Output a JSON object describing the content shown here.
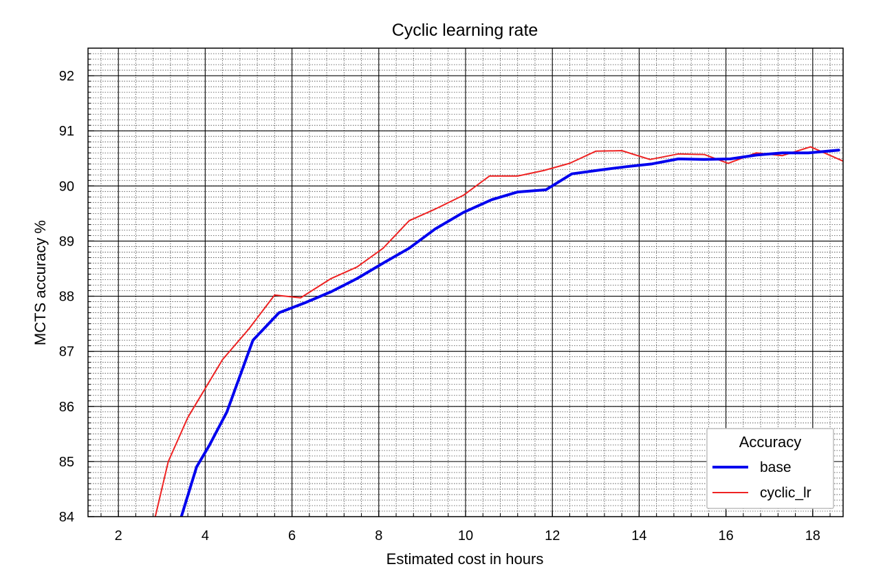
{
  "chart_data": {
    "type": "line",
    "title": "Cyclic learning rate",
    "xlabel": "Estimated cost in hours",
    "ylabel": "MCTS accuracy %",
    "xlim": [
      1.3,
      18.7
    ],
    "ylim": [
      84,
      92.5
    ],
    "xticks": [
      2,
      4,
      6,
      8,
      10,
      12,
      14,
      16,
      18
    ],
    "yticks": [
      84,
      85,
      86,
      87,
      88,
      89,
      90,
      91,
      92
    ],
    "x_minor_step": 0.4,
    "y_minor_step": 0.1,
    "grid": true,
    "legend": {
      "title": "Accuracy",
      "position": "bottom-right"
    },
    "series": [
      {
        "name": "base",
        "color": "#0000ee",
        "line_width": 4,
        "x": [
          3.45,
          3.8,
          4.1,
          4.5,
          5.1,
          5.7,
          6.3,
          6.9,
          7.5,
          8.1,
          8.7,
          9.3,
          9.95,
          10.6,
          11.2,
          11.85,
          12.45,
          13.1,
          13.7,
          14.3,
          14.9,
          15.5,
          16.1,
          16.7,
          17.3,
          17.9,
          18.6
        ],
        "values": [
          84.0,
          84.9,
          85.3,
          85.9,
          87.2,
          87.7,
          87.88,
          88.08,
          88.32,
          88.6,
          88.87,
          89.22,
          89.52,
          89.75,
          89.89,
          89.93,
          90.22,
          90.29,
          90.35,
          90.4,
          90.49,
          90.48,
          90.49,
          90.56,
          90.6,
          90.6,
          90.65
        ]
      },
      {
        "name": "cyclic_lr",
        "color": "#ee2222",
        "line_width": 2,
        "x": [
          2.85,
          3.15,
          3.6,
          4.4,
          5.0,
          5.6,
          6.2,
          6.9,
          7.5,
          8.1,
          8.7,
          9.3,
          9.95,
          10.55,
          11.2,
          11.8,
          12.4,
          13.0,
          13.6,
          14.25,
          14.9,
          15.5,
          16.05,
          16.7,
          17.3,
          17.95,
          18.7
        ],
        "values": [
          84.0,
          85.0,
          85.8,
          86.85,
          87.4,
          88.02,
          87.97,
          88.32,
          88.53,
          88.87,
          89.37,
          89.58,
          89.83,
          90.18,
          90.18,
          90.28,
          90.41,
          90.63,
          90.64,
          90.48,
          90.58,
          90.57,
          90.41,
          90.6,
          90.55,
          90.71,
          90.45
        ]
      }
    ]
  }
}
